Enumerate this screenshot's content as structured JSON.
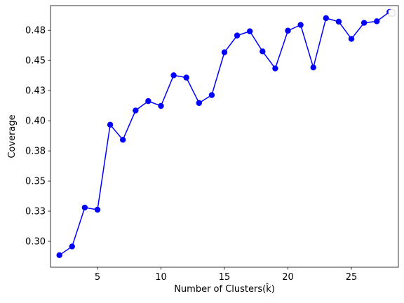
{
  "chart_data": {
    "type": "line",
    "title": "",
    "xlabel": "Number of Clusters(k̂)",
    "ylabel": "Coverage",
    "xlim": [
      1.3,
      28.7
    ],
    "ylim": [
      0.2785,
      0.4955
    ],
    "x_ticks": [
      5,
      10,
      15,
      20,
      25
    ],
    "x_tick_labels": [
      "5",
      "10",
      "15",
      "20",
      "25"
    ],
    "y_ticks": [
      0.3,
      0.325,
      0.35,
      0.375,
      0.4,
      0.425,
      0.45,
      0.475
    ],
    "y_tick_labels": [
      "0.30",
      "0.33",
      "0.35",
      "0.38",
      "0.40",
      "0.43",
      "0.45",
      "0.48"
    ],
    "grid": false,
    "legend": "top-right (empty)",
    "series": [
      {
        "color": "#0000ff",
        "marker": "circle",
        "x": [
          2,
          3,
          4,
          5,
          6,
          7,
          8,
          9,
          10,
          11,
          12,
          13,
          14,
          15,
          16,
          17,
          18,
          19,
          20,
          21,
          22,
          23,
          24,
          25,
          26,
          27,
          28
        ],
        "y": [
          0.2885,
          0.2957,
          0.328,
          0.3262,
          0.3967,
          0.3842,
          0.4085,
          0.4163,
          0.4123,
          0.4377,
          0.4358,
          0.4147,
          0.4213,
          0.4568,
          0.4707,
          0.4742,
          0.4575,
          0.4434,
          0.4747,
          0.4795,
          0.4442,
          0.4851,
          0.4822,
          0.4679,
          0.4812,
          0.4825,
          0.4903
        ]
      }
    ]
  }
}
